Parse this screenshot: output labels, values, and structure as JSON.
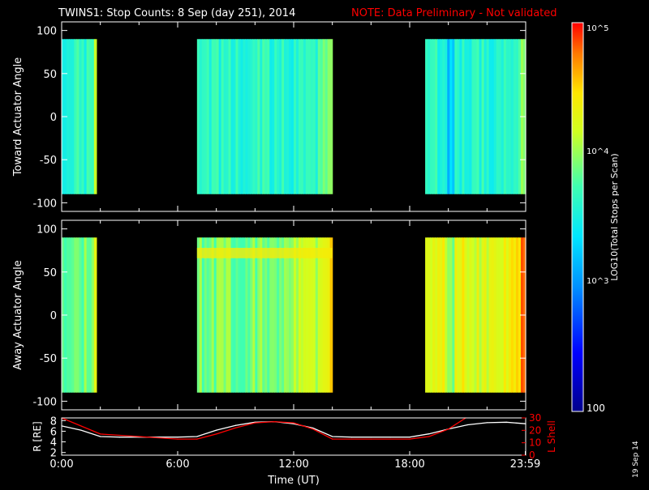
{
  "header": {
    "title": "TWINS1: Stop Counts:  8 Sep (day 251), 2014",
    "note": "NOTE: Data Preliminary - Not validated"
  },
  "stamp": "19 Sep 14",
  "colors": {
    "title": "#ffffff",
    "note": "#ff0000",
    "axis": "#ffffff",
    "background": "#000000",
    "r_line": "#ffffff",
    "l_line": "#ff0000"
  },
  "colorbar": {
    "label": "LOG10(Total Stops per Scan)",
    "tick_labels": [
      "100",
      "10^3",
      "10^4",
      "10^5"
    ],
    "min": 100,
    "max": 100000,
    "scale": "log"
  },
  "chart_data": [
    {
      "type": "heatmap",
      "id": "toward",
      "ylabel": "Toward Actuator Angle",
      "x_range_hours": [
        0,
        24
      ],
      "ylim": [
        -110,
        110
      ],
      "yticks": [
        100,
        50,
        0,
        -50,
        -100
      ],
      "data_y_range": [
        -90,
        90
      ],
      "data_blocks_hours": [
        [
          0.0,
          1.8
        ],
        [
          7.0,
          14.0
        ],
        [
          18.8,
          24.0
        ]
      ],
      "approx_log10_level": 3.6
    },
    {
      "type": "heatmap",
      "id": "away",
      "ylabel": "Away Actuator Angle",
      "x_range_hours": [
        0,
        24
      ],
      "ylim": [
        -110,
        110
      ],
      "yticks": [
        100,
        50,
        0,
        -50,
        -100
      ],
      "data_y_range": [
        -90,
        90
      ],
      "data_blocks_hours": [
        [
          0.0,
          1.8
        ],
        [
          7.0,
          14.0
        ],
        [
          18.8,
          24.0
        ]
      ],
      "approx_log10_level": 3.9
    },
    {
      "type": "line",
      "id": "orbit",
      "ylabel": "R [RE]",
      "y2label": "L Shell",
      "xlabel": "Time (UT)",
      "xtick_labels": [
        "0:00",
        "6:00",
        "12:00",
        "18:00",
        "23:59"
      ],
      "xtick_hours": [
        0,
        6,
        12,
        18,
        23.98
      ],
      "ylim": [
        1.5,
        8.5
      ],
      "yticks": [
        2,
        4,
        6,
        8
      ],
      "y2lim": [
        0,
        30
      ],
      "y2ticks": [
        0,
        10,
        20,
        30
      ],
      "series": [
        {
          "name": "R [RE]",
          "axis": "left",
          "x": [
            0,
            1,
            2,
            3,
            4,
            5,
            6,
            7,
            8,
            9,
            10,
            11,
            12,
            13,
            14,
            15,
            16,
            17,
            18,
            19,
            20,
            21,
            22,
            23,
            24
          ],
          "y": [
            7.0,
            6.2,
            5.0,
            4.9,
            4.9,
            4.9,
            4.9,
            5.0,
            6.2,
            7.1,
            7.7,
            7.8,
            7.4,
            6.6,
            5.0,
            4.9,
            4.9,
            4.9,
            4.9,
            5.5,
            6.4,
            7.2,
            7.6,
            7.7,
            7.4
          ]
        },
        {
          "name": "L Shell",
          "axis": "right",
          "x": [
            0,
            2,
            4,
            6,
            7,
            8,
            9,
            10,
            11,
            12,
            13,
            14,
            16,
            18,
            19,
            20,
            20.9
          ],
          "y": [
            31,
            17,
            15,
            13,
            13,
            17,
            22,
            26,
            27,
            26,
            21,
            13,
            13,
            13,
            15,
            21,
            30
          ]
        }
      ]
    }
  ]
}
